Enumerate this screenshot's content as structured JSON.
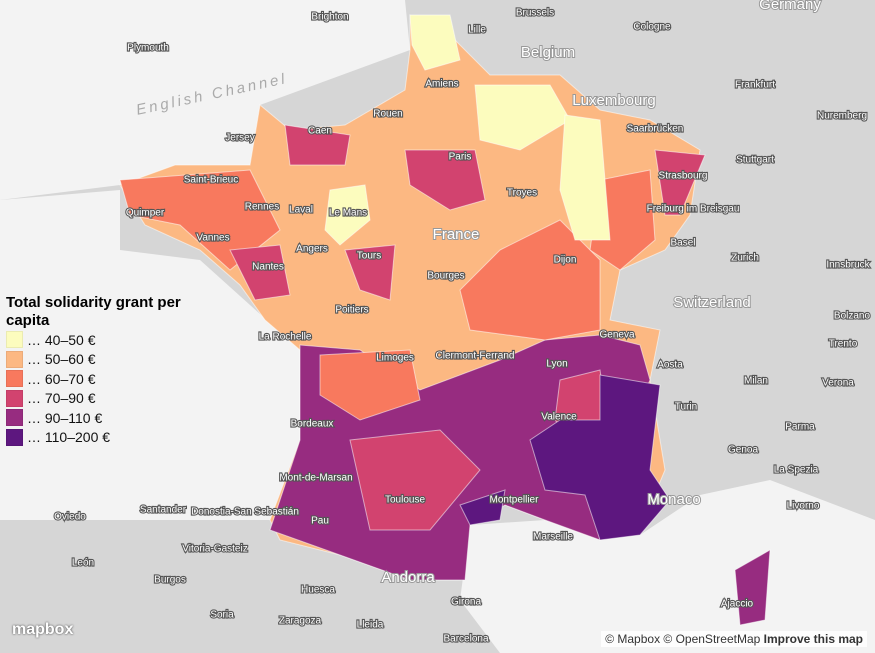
{
  "legend": {
    "title": "Total solidarity grant per capita",
    "items": [
      {
        "label": "… 40–50 €",
        "color": "#fcfcbe"
      },
      {
        "label": "… 50–60 €",
        "color": "#fcb882"
      },
      {
        "label": "… 60–70 €",
        "color": "#f8795e"
      },
      {
        "label": "… 70–90 €",
        "color": "#d2436f"
      },
      {
        "label": "… 90–110 €",
        "color": "#972c80"
      },
      {
        "label": "… 110–200 €",
        "color": "#5d177f"
      }
    ]
  },
  "places": [
    "English Channel",
    "Belgium",
    "Luxembourg",
    "France",
    "Switzerland",
    "Monaco",
    "Andorra",
    "Germany",
    "Brighton",
    "Brussels",
    "Lille",
    "Cologne",
    "Plymouth",
    "Amiens",
    "Frankfurt",
    "Rouen",
    "Caen",
    "Jersey",
    "Nuremberg",
    "Saarbrücken",
    "Paris",
    "Stuttgart",
    "Saint-Brieuc",
    "Strasbourg",
    "Troyes",
    "Rennes",
    "Laval",
    "Le Mans",
    "Freiburg im Breisgau",
    "Quimper",
    "Vannes",
    "Angers",
    "Basel",
    "Tours",
    "Dijon",
    "Zurich",
    "Nantes",
    "Bourges",
    "Innsbruck",
    "Poitiers",
    "Bolzano",
    "Geneva",
    "La Rochelle",
    "Clermont-Ferrand",
    "Trento",
    "Limoges",
    "Lyon",
    "Aosta",
    "Milan",
    "Verona",
    "Turin",
    "Valence",
    "Bordeaux",
    "Parma",
    "Genoa",
    "Mont-de-Marsan",
    "La Spezia",
    "Montpellier",
    "Toulouse",
    "Santander",
    "Donostia-San Sebastián",
    "Oviedo",
    "Livorno",
    "Pau",
    "Marseille",
    "Vitoria-Gasteiz",
    "León",
    "Burgos",
    "Huesca",
    "Girona",
    "Ajaccio",
    "Soria",
    "Zaragoza",
    "Lleida",
    "Barcelona"
  ],
  "logo": "mapbox",
  "attribution": {
    "text": "© Mapbox © OpenStreetMap",
    "link": "Improve this map"
  }
}
